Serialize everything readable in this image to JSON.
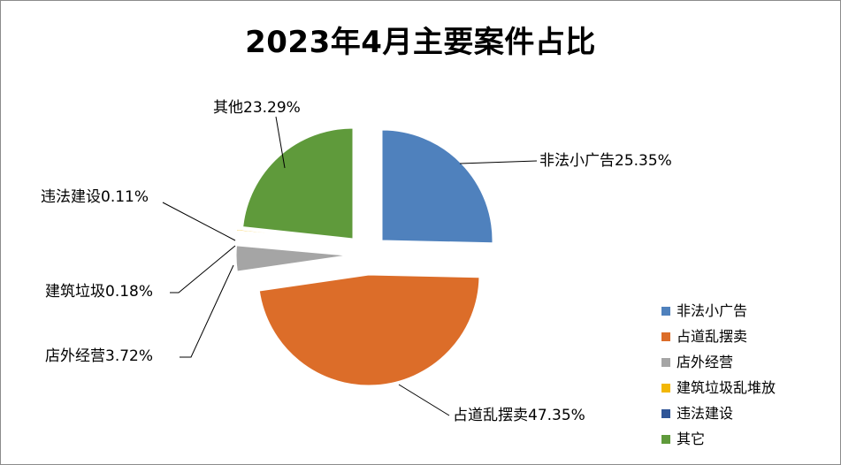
{
  "chart_data": {
    "type": "pie",
    "title": "2023年4月主要案件占比",
    "slices": [
      {
        "name": "非法小广告",
        "value": 25.35,
        "label": "非法小广告25.35%",
        "color": "#4f81bd"
      },
      {
        "name": "占道乱摆卖",
        "value": 47.35,
        "label": "占道乱摆卖47.35%",
        "color": "#dc6d29"
      },
      {
        "name": "店外经营",
        "value": 3.72,
        "label": "店外经营3.72%",
        "color": "#a5a5a5"
      },
      {
        "name": "建筑垃圾",
        "value": 0.18,
        "label": "建筑垃圾0.18%",
        "color": "#f2b705"
      },
      {
        "name": "违法建设",
        "value": 0.11,
        "label": "违法建设0.11%",
        "color": "#2f5597"
      },
      {
        "name": "其他",
        "value": 23.29,
        "label": "其他23.29%",
        "color": "#5f9a3b"
      }
    ],
    "legend": {
      "placement": "bottom-right",
      "entries": [
        {
          "name": "非法小广告",
          "color": "#4f81bd"
        },
        {
          "name": "占道乱摆卖",
          "color": "#dc6d29"
        },
        {
          "name": "店外经营",
          "color": "#a5a5a5"
        },
        {
          "name": "建筑垃圾乱堆放",
          "color": "#f2b705"
        },
        {
          "name": "违法建设",
          "color": "#2f5597"
        },
        {
          "name": "其它",
          "color": "#5f9a3b"
        }
      ]
    }
  }
}
